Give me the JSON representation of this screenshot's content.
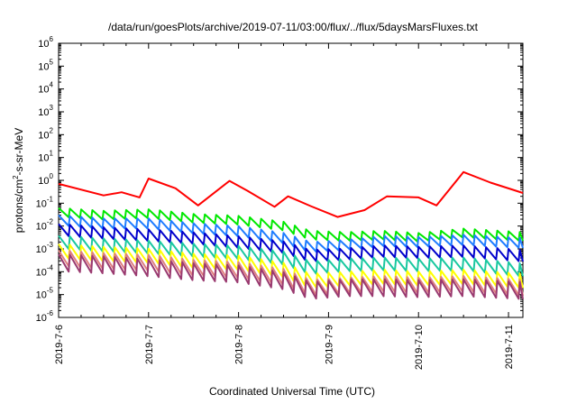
{
  "chart_data": {
    "type": "line",
    "title": "/data/run/goesPlots/archive/2019-07-11/03:00/flux/../flux/5daysMarsFluxes.txt",
    "xlabel": "Coordinated Universal Time (UTC)",
    "ylabel": {
      "before": "protons/cm",
      "sup": "2",
      "after": "-s-sr-MeV"
    },
    "y_scale": "log",
    "ylim_exponents": [
      -6,
      6
    ],
    "y_tick_base": "10",
    "y_tick_exponents": [
      "-6",
      "-5",
      "-4",
      "-3",
      "-2",
      "-1",
      "0",
      "1",
      "2",
      "3",
      "4",
      "5",
      "6"
    ],
    "x_range_days": [
      0,
      5.16
    ],
    "x_tick_labels": [
      "2019-7-6",
      "2019-7-7",
      "2019-7-8",
      "2019-7-9",
      "2019-7-10",
      "2019-7-11"
    ],
    "grid": false,
    "legend": "none",
    "series_colors": [
      "#ff0000",
      "#00e800",
      "#1e7cff",
      "#0000cc",
      "#19c8a0",
      "#ffff00",
      "#e08080",
      "#9a3a70"
    ],
    "series": [
      {
        "color": "#ff0000",
        "anchors": [
          [
            0,
            0.7
          ],
          [
            0.5,
            0.22
          ],
          [
            0.7,
            0.3
          ],
          [
            0.9,
            0.18
          ],
          [
            1.0,
            1.2
          ],
          [
            1.3,
            0.45
          ],
          [
            1.55,
            0.08
          ],
          [
            1.9,
            0.95
          ],
          [
            2.1,
            0.35
          ],
          [
            2.4,
            0.07
          ],
          [
            2.55,
            0.2
          ],
          [
            2.8,
            0.075
          ],
          [
            3.1,
            0.025
          ],
          [
            3.4,
            0.05
          ],
          [
            3.65,
            0.2
          ],
          [
            4.0,
            0.18
          ],
          [
            4.2,
            0.08
          ],
          [
            4.5,
            2.3
          ],
          [
            4.8,
            0.8
          ],
          [
            5.16,
            0.28
          ]
        ]
      },
      {
        "color": "#00e800",
        "anchors": [
          [
            0,
            0.04
          ],
          [
            0.5,
            0.03
          ],
          [
            1.0,
            0.035
          ],
          [
            1.5,
            0.022
          ],
          [
            2.0,
            0.018
          ],
          [
            2.5,
            0.01
          ],
          [
            2.8,
            0.004
          ],
          [
            3.2,
            0.0035
          ],
          [
            3.6,
            0.004
          ],
          [
            4.0,
            0.0032
          ],
          [
            4.5,
            0.005
          ],
          [
            5.16,
            0.0035
          ]
        ]
      },
      {
        "color": "#1e7cff",
        "anchors": [
          [
            0,
            0.018
          ],
          [
            0.5,
            0.013
          ],
          [
            1.0,
            0.013
          ],
          [
            1.5,
            0.008
          ],
          [
            2.0,
            0.006
          ],
          [
            2.5,
            0.003
          ],
          [
            2.8,
            0.0012
          ],
          [
            3.2,
            0.0015
          ],
          [
            3.6,
            0.0022
          ],
          [
            4.0,
            0.002
          ],
          [
            4.5,
            0.0025
          ],
          [
            5.16,
            0.0018
          ]
        ]
      },
      {
        "color": "#0000cc",
        "anchors": [
          [
            0,
            0.007
          ],
          [
            0.5,
            0.005
          ],
          [
            1.0,
            0.004
          ],
          [
            1.5,
            0.003
          ],
          [
            2.0,
            0.002
          ],
          [
            2.5,
            0.0012
          ],
          [
            2.8,
            0.0005
          ],
          [
            3.2,
            0.0006
          ],
          [
            3.6,
            0.0008
          ],
          [
            4.0,
            0.0007
          ],
          [
            4.5,
            0.0008
          ],
          [
            5.16,
            0.0005
          ]
        ]
      },
      {
        "color": "#19c8a0",
        "anchors": [
          [
            0,
            0.002
          ],
          [
            0.5,
            0.0015
          ],
          [
            1.0,
            0.0012
          ],
          [
            1.5,
            0.0009
          ],
          [
            2.0,
            0.0007
          ],
          [
            2.5,
            0.0004
          ],
          [
            2.8,
            0.00015
          ],
          [
            3.2,
            0.0002
          ],
          [
            3.6,
            0.00022
          ],
          [
            4.0,
            0.0002
          ],
          [
            4.5,
            0.00022
          ],
          [
            5.16,
            0.00012
          ]
        ]
      },
      {
        "color": "#ffff00",
        "anchors": [
          [
            0,
            0.0008
          ],
          [
            0.5,
            0.0006
          ],
          [
            1.0,
            0.0005
          ],
          [
            1.5,
            0.0003
          ],
          [
            2.0,
            0.00025
          ],
          [
            2.5,
            0.00012
          ],
          [
            2.8,
            4e-05
          ],
          [
            3.2,
            5e-05
          ],
          [
            3.6,
            6e-05
          ],
          [
            4.0,
            5e-05
          ],
          [
            4.5,
            6e-05
          ],
          [
            5.16,
            4e-05
          ]
        ]
      },
      {
        "color": "#e08080",
        "anchors": [
          [
            0,
            0.0004
          ],
          [
            0.5,
            0.0003
          ],
          [
            1.0,
            0.00025
          ],
          [
            1.5,
            0.00015
          ],
          [
            2.0,
            0.00012
          ],
          [
            2.5,
            6e-05
          ],
          [
            2.8,
            2e-05
          ],
          [
            3.2,
            2.5e-05
          ],
          [
            3.6,
            3e-05
          ],
          [
            4.0,
            2.5e-05
          ],
          [
            4.5,
            3e-05
          ],
          [
            5.16,
            2e-05
          ]
        ]
      },
      {
        "color": "#9a3a70",
        "anchors": [
          [
            0,
            0.00025
          ],
          [
            0.5,
            0.0002
          ],
          [
            1.0,
            0.00015
          ],
          [
            1.5,
            0.0001
          ],
          [
            2.0,
            8e-05
          ],
          [
            2.5,
            4e-05
          ],
          [
            2.8,
            1.5e-05
          ],
          [
            3.2,
            2e-05
          ],
          [
            3.6,
            2e-05
          ],
          [
            4.0,
            1.8e-05
          ],
          [
            4.5,
            2e-05
          ],
          [
            5.16,
            1.5e-05
          ]
        ]
      }
    ]
  }
}
